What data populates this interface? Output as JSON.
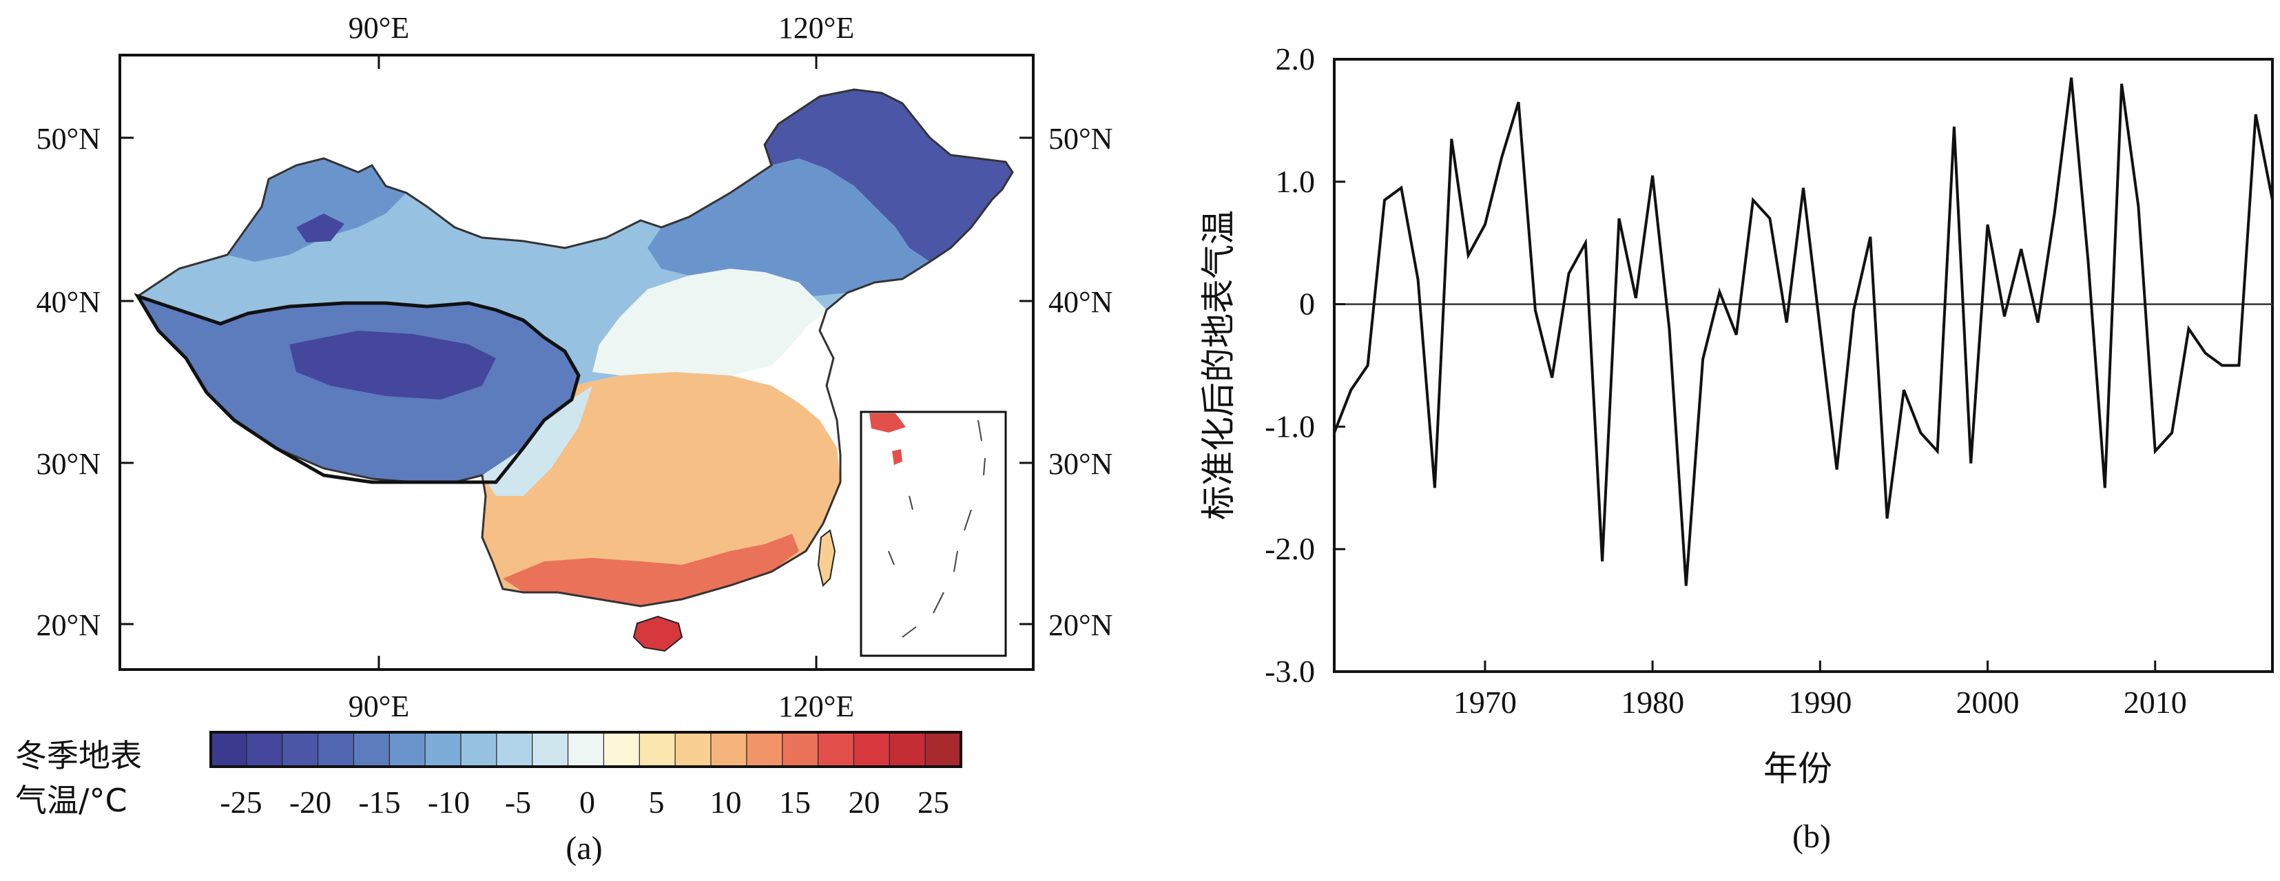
{
  "panel_a": {
    "label": "(a)",
    "top_lon_ticks": [
      "90°E",
      "120°E"
    ],
    "bottom_lon_ticks": [
      "90°E",
      "120°E"
    ],
    "left_lat_ticks": [
      "50°N",
      "40°N",
      "30°N",
      "20°N"
    ],
    "right_lat_ticks": [
      "50°N",
      "40°N",
      "30°N",
      "20°N"
    ],
    "colorbar": {
      "title_line1": "冬季地表",
      "title_line2": "气温/°C",
      "tick_labels": [
        "-25",
        "-20",
        "-15",
        "-10",
        "-5",
        "0",
        "5",
        "10",
        "15",
        "20",
        "25"
      ],
      "colors": [
        "#3b3a8f",
        "#44479c",
        "#4c56a6",
        "#5366b2",
        "#5d7cbd",
        "#6a95cc",
        "#7eacd8",
        "#97c1e0",
        "#b1d3e8",
        "#cfe6ef",
        "#eef6f4",
        "#fdf7d8",
        "#fce6b0",
        "#f9cf91",
        "#f5b47c",
        "#f19468",
        "#ea7258",
        "#e3504c",
        "#d7383e",
        "#c52d35",
        "#a82a2e"
      ]
    }
  },
  "chart_data": {
    "type": "line",
    "label": "(b)",
    "xlabel": "年份",
    "ylabel": "标准化后的地表气温",
    "xlim": [
      1961,
      2017
    ],
    "ylim": [
      -3.0,
      2.0
    ],
    "x_ticks": [
      "1970",
      "1980",
      "1990",
      "2000",
      "2010"
    ],
    "y_ticks": [
      "2.0",
      "1.0",
      "0",
      "-1.0",
      "-2.0",
      "-3.0"
    ],
    "reference_line": 0,
    "x": [
      1961,
      1962,
      1963,
      1964,
      1965,
      1966,
      1967,
      1968,
      1969,
      1970,
      1971,
      1972,
      1973,
      1974,
      1975,
      1976,
      1977,
      1978,
      1979,
      1980,
      1981,
      1982,
      1983,
      1984,
      1985,
      1986,
      1987,
      1988,
      1989,
      1990,
      1991,
      1992,
      1993,
      1994,
      1995,
      1996,
      1997,
      1998,
      1999,
      2000,
      2001,
      2002,
      2003,
      2004,
      2005,
      2006,
      2007,
      2008,
      2009,
      2010,
      2011,
      2012,
      2013,
      2014,
      2015,
      2016,
      2017
    ],
    "values": [
      -1.05,
      -0.7,
      -0.5,
      0.85,
      0.95,
      0.2,
      -1.5,
      1.35,
      0.4,
      0.65,
      1.2,
      1.65,
      -0.05,
      -0.6,
      0.25,
      0.5,
      -2.1,
      0.7,
      0.05,
      1.05,
      -0.2,
      -2.3,
      -0.45,
      0.1,
      -0.25,
      0.85,
      0.7,
      -0.15,
      0.95,
      -0.2,
      -1.35,
      -0.05,
      0.55,
      -1.75,
      -0.7,
      -1.05,
      -1.2,
      1.45,
      -1.3,
      0.65,
      -0.1,
      0.45,
      -0.15,
      0.75,
      1.85,
      0.35,
      -1.5,
      1.8,
      0.8,
      -1.2,
      -1.05,
      -0.2,
      -0.4,
      -0.5,
      -0.5,
      1.55,
      0.85
    ],
    "line_color": "#111111"
  }
}
